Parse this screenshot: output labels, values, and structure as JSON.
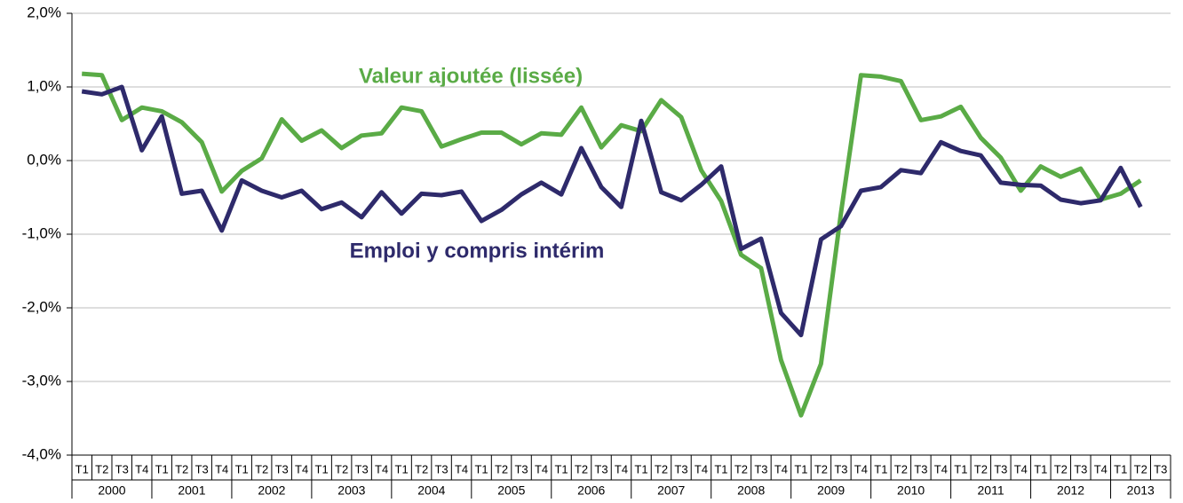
{
  "chart_data": {
    "type": "line",
    "categories": [
      "T1",
      "T2",
      "T3",
      "T4",
      "T1",
      "T2",
      "T3",
      "T4",
      "T1",
      "T2",
      "T3",
      "T4",
      "T1",
      "T2",
      "T3",
      "T4",
      "T1",
      "T2",
      "T3",
      "T4",
      "T1",
      "T2",
      "T3",
      "T4",
      "T1",
      "T2",
      "T3",
      "T4",
      "T1",
      "T2",
      "T3",
      "T4",
      "T1",
      "T2",
      "T3",
      "T4",
      "T1",
      "T2",
      "T3",
      "T4",
      "T1",
      "T2",
      "T3",
      "T4",
      "T1",
      "T2",
      "T3",
      "T4",
      "T1",
      "T2",
      "T3",
      "T4",
      "T1",
      "T2",
      "T3"
    ],
    "years": [
      "2000",
      "2001",
      "2002",
      "2003",
      "2004",
      "2005",
      "2006",
      "2007",
      "2008",
      "2009",
      "2010",
      "2011",
      "2012",
      "2013"
    ],
    "series": [
      {
        "name": "Valeur ajoutée (lissée)",
        "color": "#5aab46",
        "values": [
          1.18,
          1.16,
          0.55,
          0.72,
          0.67,
          0.52,
          0.25,
          -0.42,
          -0.14,
          0.03,
          0.56,
          0.27,
          0.41,
          0.17,
          0.34,
          0.37,
          0.72,
          0.67,
          0.19,
          0.29,
          0.38,
          0.38,
          0.22,
          0.37,
          0.35,
          0.72,
          0.18,
          0.48,
          0.4,
          0.82,
          0.59,
          -0.13,
          -0.55,
          -1.28,
          -1.46,
          -2.71,
          -3.46,
          -2.76,
          -0.71,
          1.16,
          1.14,
          1.08,
          0.55,
          0.6,
          0.73,
          0.31,
          0.04,
          -0.41,
          -0.08,
          -0.22,
          -0.11,
          -0.53,
          -0.45,
          -0.27,
          null
        ]
      },
      {
        "name": "Emploi y compris intérim",
        "color": "#2e2a6b",
        "values": [
          0.94,
          0.9,
          1.0,
          0.14,
          0.6,
          -0.45,
          -0.41,
          -0.95,
          -0.27,
          -0.41,
          -0.5,
          -0.41,
          -0.66,
          -0.57,
          -0.77,
          -0.43,
          -0.72,
          -0.45,
          -0.47,
          -0.42,
          -0.82,
          -0.67,
          -0.46,
          -0.3,
          -0.46,
          0.17,
          -0.36,
          -0.63,
          0.54,
          -0.43,
          -0.54,
          -0.33,
          -0.08,
          -1.2,
          -1.06,
          -2.07,
          -2.37,
          -1.07,
          -0.89,
          -0.41,
          -0.36,
          -0.13,
          -0.17,
          0.25,
          0.13,
          0.07,
          -0.3,
          -0.33,
          -0.34,
          -0.53,
          -0.58,
          -0.54,
          -0.1,
          -0.63,
          null
        ]
      }
    ],
    "ylim": [
      -4,
      2
    ],
    "yticks": [
      {
        "value": -4,
        "label": "-4,0%"
      },
      {
        "value": -3,
        "label": "-3,0%"
      },
      {
        "value": -2,
        "label": "-2,0%"
      },
      {
        "value": -1,
        "label": "-1,0%"
      },
      {
        "value": 0,
        "label": "0,0%"
      },
      {
        "value": 1,
        "label": "1,0%"
      },
      {
        "value": 2,
        "label": "2,0%"
      }
    ],
    "grid": true
  }
}
